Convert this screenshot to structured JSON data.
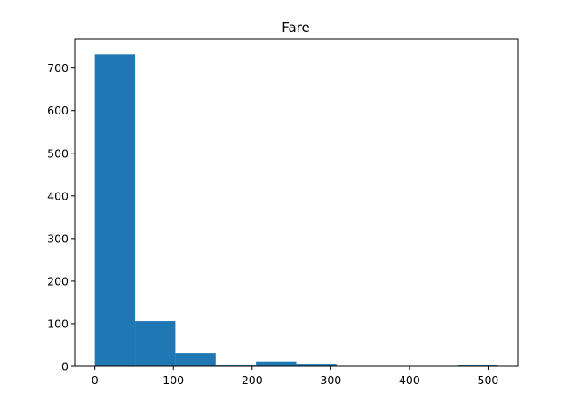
{
  "chart_data": {
    "type": "bar",
    "title": "Fare",
    "xlabel": "",
    "ylabel": "",
    "bin_edges": [
      0,
      51.23,
      102.47,
      153.7,
      204.93,
      256.16,
      307.4,
      358.63,
      409.86,
      461.09,
      512.33
    ],
    "values": [
      732,
      106,
      31,
      2,
      11,
      6,
      0,
      0,
      0,
      3
    ],
    "xlim": [
      -25.6,
      537.9
    ],
    "ylim": [
      0,
      768
    ],
    "xticks": [
      0,
      100,
      200,
      300,
      400,
      500
    ],
    "yticks": [
      0,
      100,
      200,
      300,
      400,
      500,
      600,
      700
    ],
    "grid": false,
    "bar_color": "#1f77b4"
  }
}
